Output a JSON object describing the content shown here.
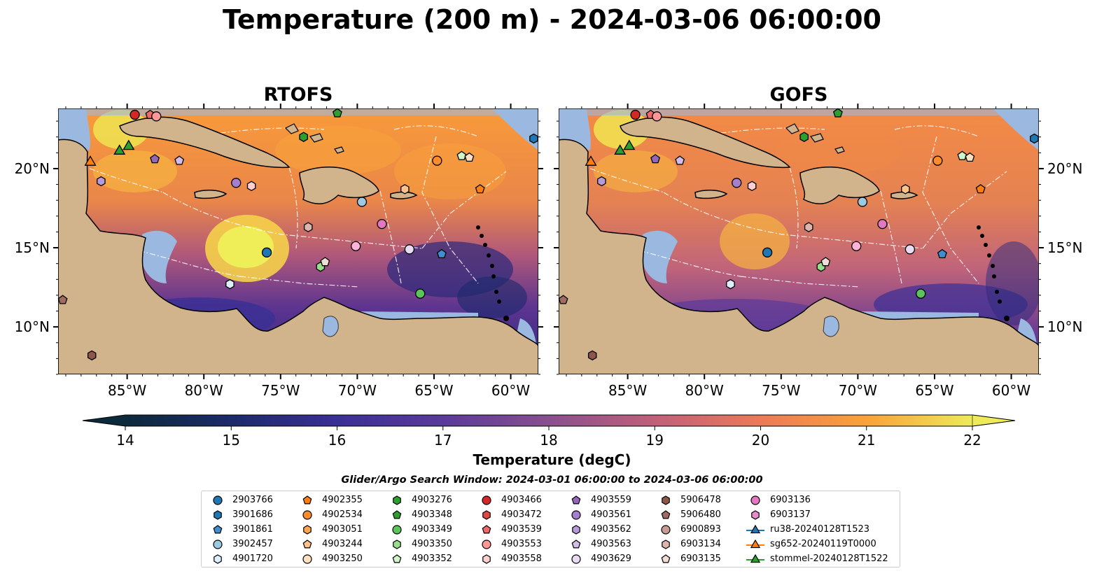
{
  "title": "Temperature (200 m) - 2024-03-06 06:00:00",
  "panels": [
    {
      "title": "RTOFS"
    },
    {
      "title": "GOFS"
    }
  ],
  "axes": {
    "lon_ticks": [
      "85°W",
      "80°W",
      "75°W",
      "70°W",
      "65°W",
      "60°W"
    ],
    "lat_ticks": [
      "20°N",
      "15°N",
      "10°N"
    ],
    "extent": {
      "lon_min": -89.5,
      "lon_max": -58.2,
      "lat_min": 7.0,
      "lat_max": 23.8
    }
  },
  "colorbar": {
    "label": "Temperature (degC)",
    "ticks": [
      "14",
      "15",
      "16",
      "17",
      "18",
      "19",
      "20",
      "21",
      "22"
    ],
    "range": [
      14,
      22
    ],
    "extend": "both"
  },
  "search_window": "Glider/Argo Search Window: 2024-03-01 06:00:00 to 2024-03-06 06:00:00",
  "legend": {
    "columns": [
      [
        {
          "label": "2903766",
          "marker": "circle",
          "color": "#1f77b4"
        },
        {
          "label": "3901686",
          "marker": "hexagon",
          "color": "#1f77b4"
        },
        {
          "label": "3901861",
          "marker": "pentagon",
          "color": "#3f8fd0"
        },
        {
          "label": "3902457",
          "marker": "circle",
          "color": "#9ecae1"
        },
        {
          "label": "4901720",
          "marker": "hexagon",
          "color": "#ddeeff"
        }
      ],
      [
        {
          "label": "4902355",
          "marker": "pentagon",
          "color": "#ff7f0e"
        },
        {
          "label": "4902534",
          "marker": "circle",
          "color": "#ff8c2a"
        },
        {
          "label": "4903051",
          "marker": "hexagon",
          "color": "#ffa550"
        },
        {
          "label": "4903244",
          "marker": "pentagon",
          "color": "#ffc28a"
        },
        {
          "label": "4903250",
          "marker": "circle",
          "color": "#ffe0c0"
        }
      ],
      [
        {
          "label": "4903276",
          "marker": "hexagon",
          "color": "#2ca02c"
        },
        {
          "label": "4903348",
          "marker": "pentagon",
          "color": "#2ca02c"
        },
        {
          "label": "4903349",
          "marker": "circle",
          "color": "#5cc45c"
        },
        {
          "label": "4903350",
          "marker": "hexagon",
          "color": "#98df8a"
        },
        {
          "label": "4903352",
          "marker": "pentagon",
          "color": "#d0f5c8"
        }
      ],
      [
        {
          "label": "4903466",
          "marker": "circle",
          "color": "#d62728"
        },
        {
          "label": "4903472",
          "marker": "hexagon",
          "color": "#e04848"
        },
        {
          "label": "4903539",
          "marker": "pentagon",
          "color": "#ee6a6a"
        },
        {
          "label": "4903553",
          "marker": "circle",
          "color": "#ff9896"
        },
        {
          "label": "4903558",
          "marker": "hexagon",
          "color": "#ffd0cf"
        }
      ],
      [
        {
          "label": "4903559",
          "marker": "pentagon",
          "color": "#9467bd"
        },
        {
          "label": "4903561",
          "marker": "circle",
          "color": "#a57fcc"
        },
        {
          "label": "4903562",
          "marker": "hexagon",
          "color": "#b99ad8"
        },
        {
          "label": "4903563",
          "marker": "pentagon",
          "color": "#d1bde6"
        },
        {
          "label": "4903629",
          "marker": "circle",
          "color": "#e8dcf4"
        }
      ],
      [
        {
          "label": "5906478",
          "marker": "hexagon",
          "color": "#8c564b"
        },
        {
          "label": "5906480",
          "marker": "pentagon",
          "color": "#a06c60"
        },
        {
          "label": "6900893",
          "marker": "circle",
          "color": "#c49c94"
        },
        {
          "label": "6903134",
          "marker": "hexagon",
          "color": "#dcb5ad"
        },
        {
          "label": "6903135",
          "marker": "pentagon",
          "color": "#f2dcd6"
        }
      ],
      [
        {
          "label": "6903136",
          "marker": "circle",
          "color": "#e377c2"
        },
        {
          "label": "6903137",
          "marker": "hexagon",
          "color": "#e68ccd"
        },
        {
          "label": "ru38-20240128T1523",
          "marker": "triangle-line",
          "color": "#1f77b4"
        },
        {
          "label": "sg652-20240119T0000",
          "marker": "triangle-line",
          "color": "#ff7f0e"
        },
        {
          "label": "stommel-20240128T1522",
          "marker": "triangle-line",
          "color": "#2ca02c"
        }
      ]
    ]
  },
  "floats": [
    {
      "lon": -84.5,
      "lat": 23.4,
      "marker": "circle",
      "color": "#d62728"
    },
    {
      "lon": -83.5,
      "lat": 23.4,
      "marker": "pentagon",
      "color": "#ee6a6a"
    },
    {
      "lon": -83.1,
      "lat": 23.3,
      "marker": "circle",
      "color": "#ff9896"
    },
    {
      "lon": -71.3,
      "lat": 23.5,
      "marker": "pentagon",
      "color": "#2ca02c"
    },
    {
      "lon": -73.5,
      "lat": 22.0,
      "marker": "hexagon",
      "color": "#2ca02c"
    },
    {
      "lon": -58.5,
      "lat": 21.9,
      "marker": "hexagon",
      "color": "#1f77b4"
    },
    {
      "lon": -83.2,
      "lat": 20.6,
      "marker": "pentagon",
      "color": "#9467bd"
    },
    {
      "lon": -81.6,
      "lat": 20.5,
      "marker": "pentagon",
      "color": "#d1bde6"
    },
    {
      "lon": -64.8,
      "lat": 20.5,
      "marker": "circle",
      "color": "#ff8c2a"
    },
    {
      "lon": -63.2,
      "lat": 20.8,
      "marker": "pentagon",
      "color": "#d0f5c8"
    },
    {
      "lon": -62.7,
      "lat": 20.7,
      "marker": "pentagon",
      "color": "#ffe0c0"
    },
    {
      "lon": -86.7,
      "lat": 19.2,
      "marker": "hexagon",
      "color": "#b99ad8"
    },
    {
      "lon": -77.9,
      "lat": 19.1,
      "marker": "circle",
      "color": "#a57fcc"
    },
    {
      "lon": -76.9,
      "lat": 18.9,
      "marker": "hexagon",
      "color": "#ffd0cf"
    },
    {
      "lon": -66.9,
      "lat": 18.7,
      "marker": "hexagon",
      "color": "#ffc28a"
    },
    {
      "lon": -62.0,
      "lat": 18.7,
      "marker": "pentagon",
      "color": "#ff7f0e"
    },
    {
      "lon": -69.7,
      "lat": 17.9,
      "marker": "circle",
      "color": "#9ecae1"
    },
    {
      "lon": -73.2,
      "lat": 16.3,
      "marker": "hexagon",
      "color": "#dcb5ad"
    },
    {
      "lon": -68.4,
      "lat": 16.5,
      "marker": "circle",
      "color": "#e377c2"
    },
    {
      "lon": -70.1,
      "lat": 15.1,
      "marker": "circle",
      "color": "#ffb3d9"
    },
    {
      "lon": -66.6,
      "lat": 14.9,
      "marker": "circle",
      "color": "#e8dcf4"
    },
    {
      "lon": -64.5,
      "lat": 14.6,
      "marker": "pentagon",
      "color": "#3f8fd0"
    },
    {
      "lon": -75.9,
      "lat": 14.7,
      "marker": "circle",
      "color": "#1f77b4"
    },
    {
      "lon": -72.4,
      "lat": 13.8,
      "marker": "hexagon",
      "color": "#98df8a"
    },
    {
      "lon": -72.1,
      "lat": 14.1,
      "marker": "pentagon",
      "color": "#f2dcd6"
    },
    {
      "lon": -78.3,
      "lat": 12.7,
      "marker": "hexagon",
      "color": "#ddeeff"
    },
    {
      "lon": -65.9,
      "lat": 12.1,
      "marker": "circle",
      "color": "#5cc45c"
    },
    {
      "lon": -89.2,
      "lat": 11.7,
      "marker": "pentagon",
      "color": "#a06c60"
    },
    {
      "lon": -87.3,
      "lat": 8.2,
      "marker": "hexagon",
      "color": "#8c564b"
    }
  ],
  "gliders": [
    {
      "lon": -84.9,
      "lat": 21.4,
      "color": "#2ca02c"
    },
    {
      "lon": -85.5,
      "lat": 21.1,
      "color": "#2ca02c"
    },
    {
      "lon": -87.4,
      "lat": 20.4,
      "color": "#ff7f0e"
    }
  ]
}
